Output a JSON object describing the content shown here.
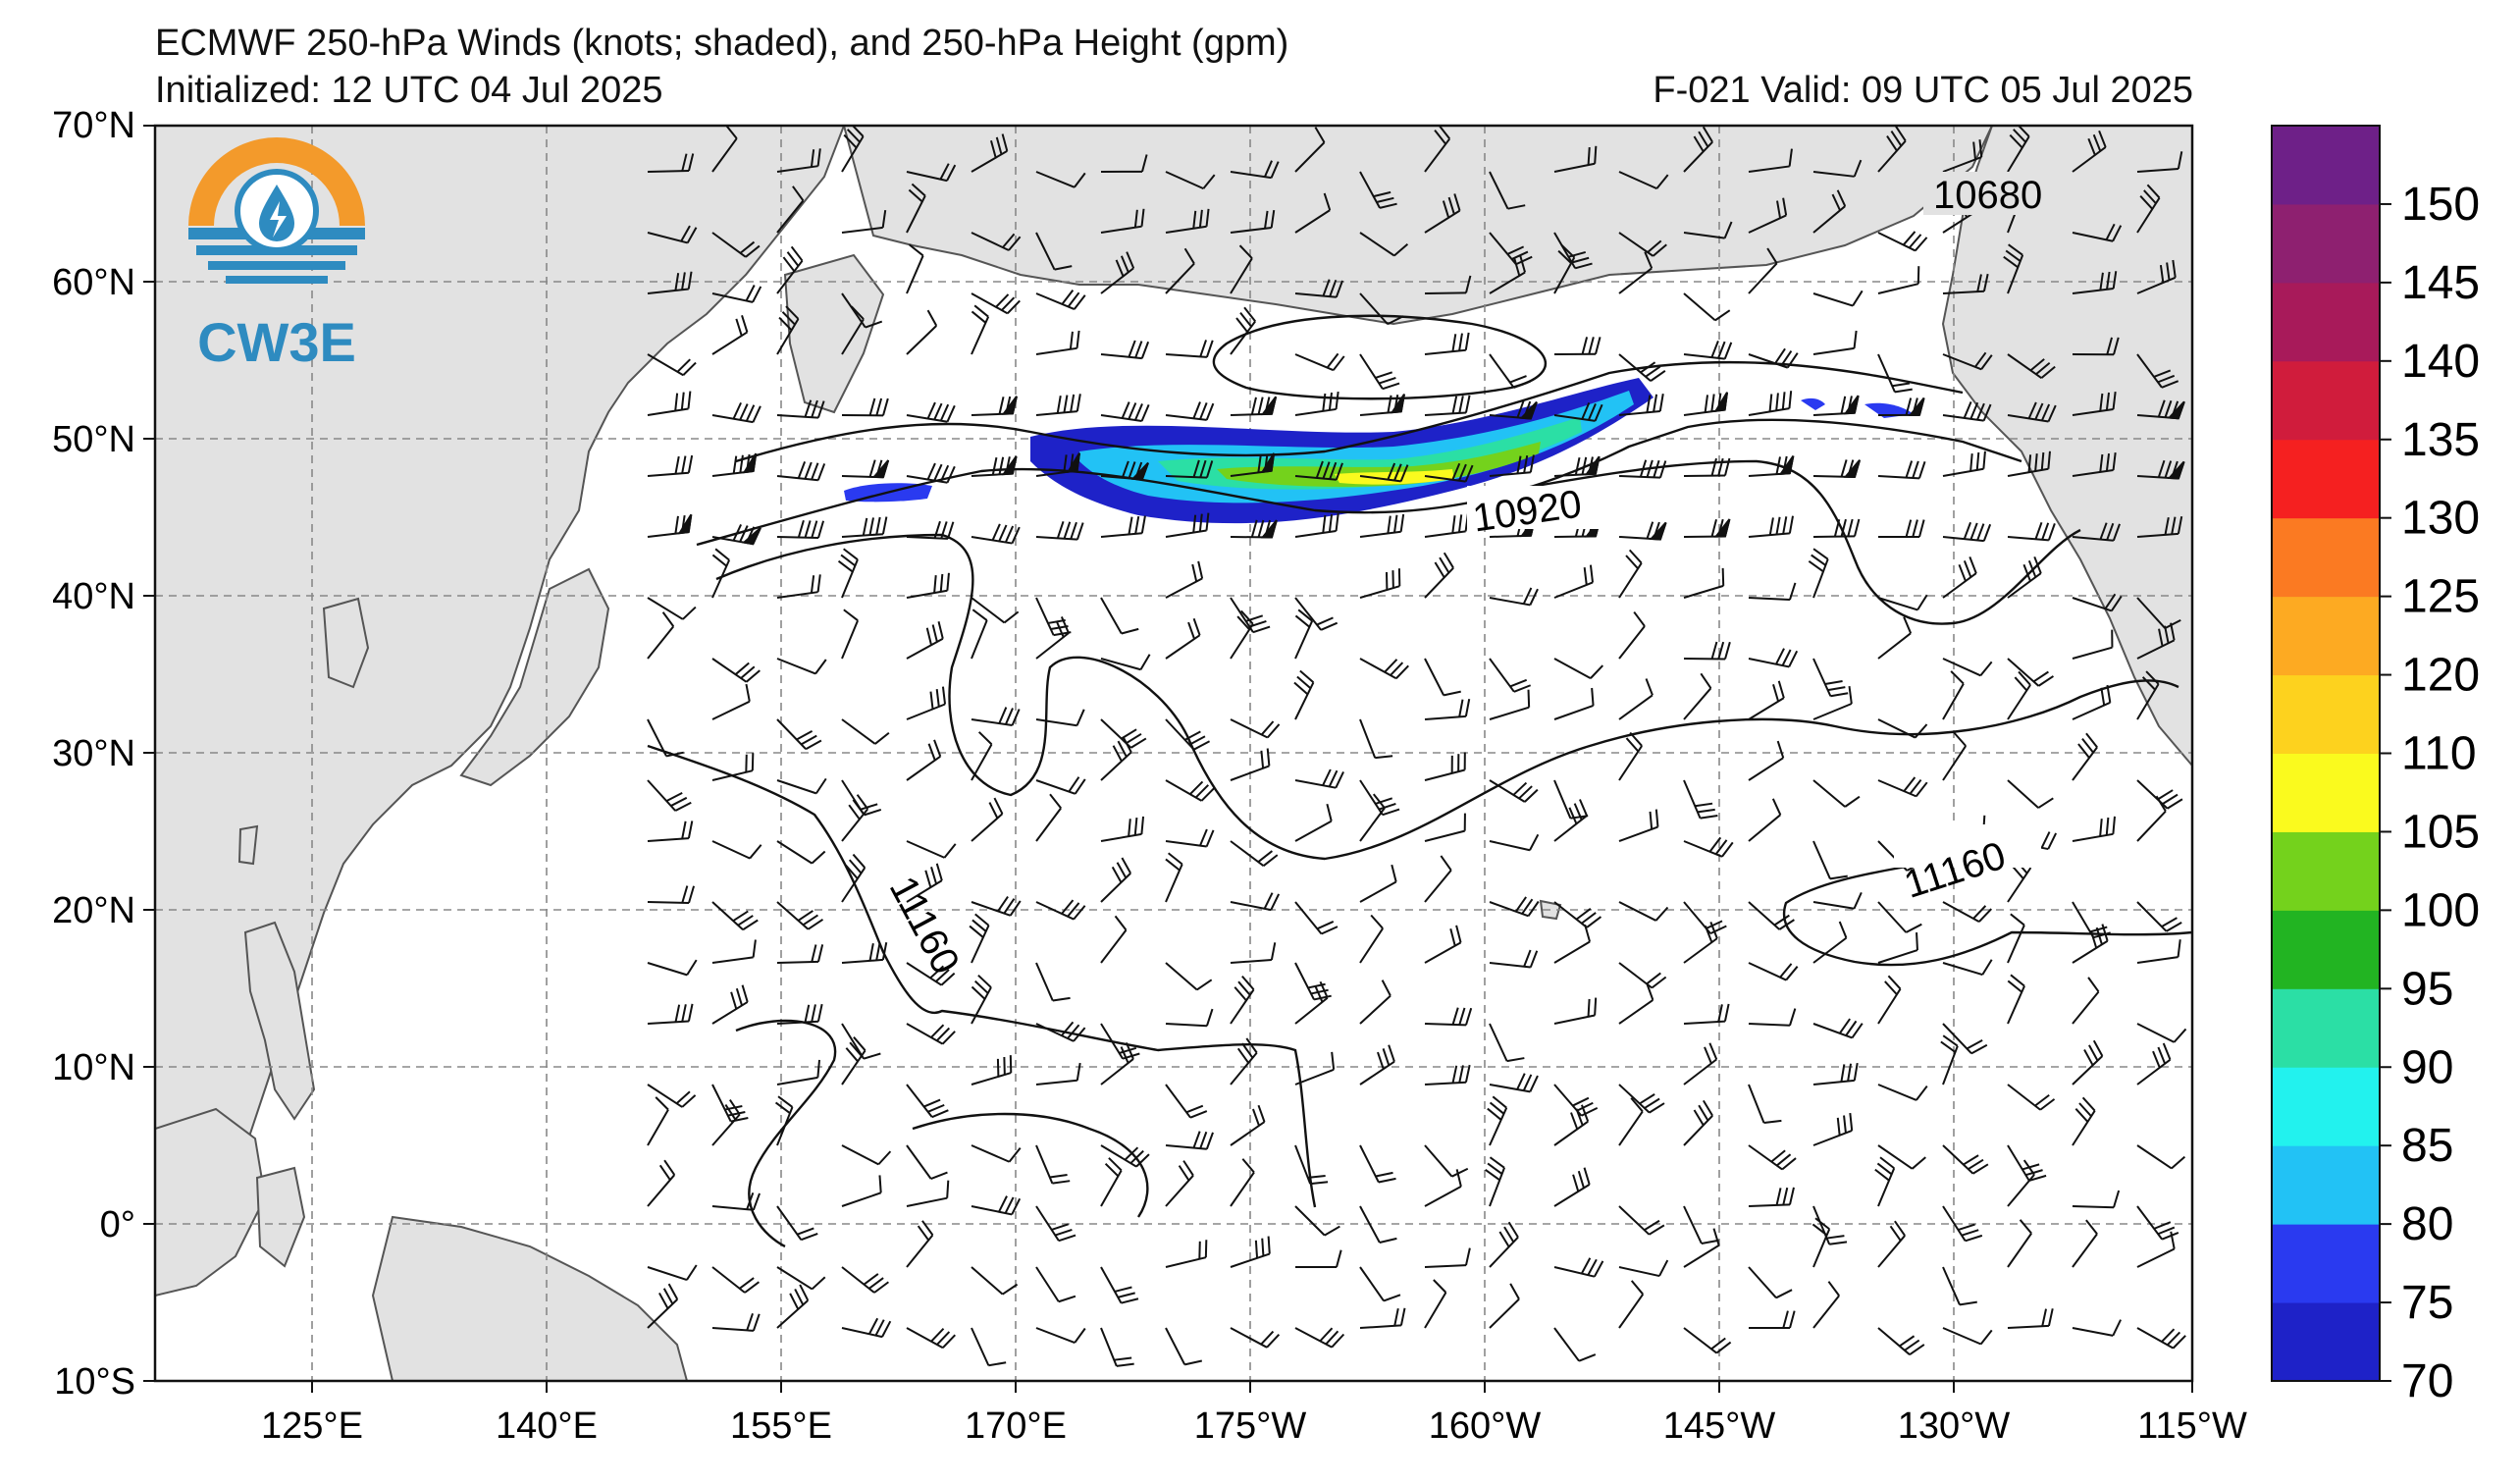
{
  "header": {
    "line1": "ECMWF 250-hPa Winds (knots; shaded), and 250-hPa Height (gpm)",
    "init": "Initialized: 12 UTC 04 Jul 2025",
    "valid": "F-021  Valid: 09 UTC 05 Jul 2025"
  },
  "logo": {
    "text": "CW3E",
    "colors": {
      "orange": "#F39A2B",
      "blue": "#2E8BC0"
    }
  },
  "axes": {
    "lat_labels": [
      "70°N",
      "60°N",
      "50°N",
      "40°N",
      "30°N",
      "20°N",
      "10°N",
      "0°",
      "10°S"
    ],
    "lon_labels": [
      "125°E",
      "140°E",
      "155°E",
      "170°E",
      "175°W",
      "160°W",
      "145°W",
      "130°W",
      "115°W"
    ]
  },
  "colorbar": {
    "labels": [
      "70",
      "75",
      "80",
      "85",
      "90",
      "95",
      "100",
      "105",
      "110",
      "120",
      "125",
      "130",
      "135",
      "140",
      "145",
      "150"
    ],
    "colors": [
      "#1E22C8",
      "#2A3AF0",
      "#22C2F5",
      "#22F2EE",
      "#2BDFA5",
      "#22B422",
      "#74D21C",
      "#FAFA1E",
      "#FDD21E",
      "#FDAA22",
      "#FB7A22",
      "#F52020",
      "#D01C3C",
      "#A81A5A",
      "#8E2070",
      "#6E2088"
    ]
  },
  "contours": {
    "labels": [
      "10680",
      "10920",
      "11160",
      "11160"
    ]
  }
}
